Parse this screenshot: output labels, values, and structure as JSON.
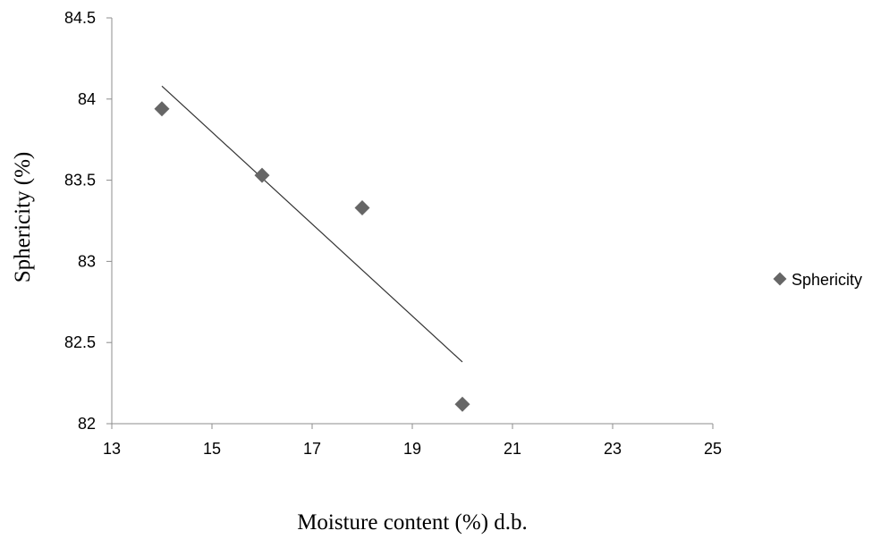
{
  "chart_data": {
    "type": "scatter",
    "xlabel": "Moisture content (%) d.b.",
    "ylabel": "Sphericity (%)",
    "xlim": [
      13,
      25
    ],
    "ylim": [
      82,
      84.5
    ],
    "x_ticks": [
      13,
      15,
      17,
      19,
      21,
      23,
      25
    ],
    "y_ticks": [
      82,
      82.5,
      83,
      83.5,
      84,
      84.5
    ],
    "y_tick_labels": [
      "82",
      "82.5",
      "83",
      "83.5",
      "84",
      "84.5"
    ],
    "grid": false,
    "legend_position": "right",
    "series": [
      {
        "name": "Sphericity",
        "marker": "diamond",
        "color": "#666666",
        "x": [
          14,
          16,
          18,
          20
        ],
        "y": [
          83.94,
          83.53,
          83.33,
          82.12
        ]
      }
    ],
    "trendline": {
      "type": "linear",
      "color": "#333333",
      "x": [
        14,
        20
      ],
      "y": [
        84.08,
        82.38
      ]
    }
  }
}
